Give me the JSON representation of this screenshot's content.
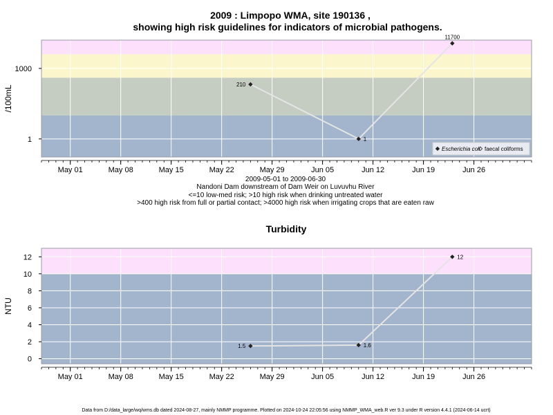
{
  "colors": {
    "pink": "#fce0fc",
    "yellow": "#fbf6cc",
    "sage": "#c5cdc2",
    "blue": "#a3b4cd",
    "grid": "#ffffff",
    "line": "#e4e4e4",
    "point": "#222222",
    "frame": "#9a9aa8"
  },
  "chart_data": [
    {
      "type": "line",
      "title_line1": "2009 : Limpopo WMA, site 190136 ,",
      "title_line2": "showing high risk guidelines for indicators of microbial pathogens.",
      "ylabel": "/100mL",
      "yscale": "log",
      "ylim": [
        0.17,
        16000
      ],
      "yticks": [
        1,
        1000
      ],
      "ytick_labels": [
        "1",
        "1000"
      ],
      "xlim": [
        "2009-04-27",
        "2009-07-04"
      ],
      "xticks": [
        "2009-05-01",
        "2009-05-08",
        "2009-05-15",
        "2009-05-22",
        "2009-05-29",
        "2009-06-05",
        "2009-06-12",
        "2009-06-19",
        "2009-06-26"
      ],
      "xtick_labels": [
        "May 01",
        "May 08",
        "May 15",
        "May 22",
        "May 29",
        "Jun 05",
        "Jun 12",
        "Jun 19",
        "Jun 26"
      ],
      "bands": [
        {
          "from": 4000,
          "to": 16000,
          "color": "pink"
        },
        {
          "from": 400,
          "to": 4000,
          "color": "yellow"
        },
        {
          "from": 10,
          "to": 400,
          "color": "sage"
        },
        {
          "from": 0.17,
          "to": 10,
          "color": "blue"
        }
      ],
      "series": [
        {
          "name": "Escherichia coli",
          "x": [
            "2009-05-26",
            "2009-06-10",
            "2009-06-23"
          ],
          "y": [
            210,
            1,
            11700
          ],
          "labels": [
            "210",
            "1",
            "11700"
          ],
          "label_pos": [
            "left",
            "right",
            "top"
          ]
        }
      ],
      "legend": {
        "position": "bottom-right",
        "entries": [
          {
            "label": "Escherichia coli",
            "marker": "filled-diamond",
            "italic": true
          },
          {
            "label": "faecal coliforms",
            "marker": "open-diamond",
            "italic": false
          }
        ]
      },
      "caption": [
        "2009-05-01 to 2009-06-30",
        "Nandoni Dam downstream of Dam Weir on Luvuvhu River",
        "<=10 low-med risk; >10 high risk when drinking untreated water",
        ">400 high risk from full or partial contact; >4000 high risk when irrigating crops that are eaten raw"
      ]
    },
    {
      "type": "line",
      "title": "Turbidity",
      "ylabel": "NTU",
      "yscale": "linear",
      "ylim": [
        -0.6,
        13.0
      ],
      "yticks": [
        0,
        2,
        4,
        6,
        8,
        10,
        12
      ],
      "ytick_labels": [
        "0",
        "2",
        "4",
        "6",
        "8",
        "10",
        "12"
      ],
      "xlim": [
        "2009-04-27",
        "2009-07-04"
      ],
      "xticks": [
        "2009-05-01",
        "2009-05-08",
        "2009-05-15",
        "2009-05-22",
        "2009-05-29",
        "2009-06-05",
        "2009-06-12",
        "2009-06-19",
        "2009-06-26"
      ],
      "xtick_labels": [
        "May 01",
        "May 08",
        "May 15",
        "May 22",
        "May 29",
        "Jun 05",
        "Jun 12",
        "Jun 19",
        "Jun 26"
      ],
      "bands": [
        {
          "from": 10,
          "to": 13.0,
          "color": "pink"
        },
        {
          "from": -0.6,
          "to": 10,
          "color": "blue"
        }
      ],
      "series": [
        {
          "x": [
            "2009-05-26",
            "2009-06-10",
            "2009-06-23"
          ],
          "y": [
            1.5,
            1.6,
            12
          ],
          "labels": [
            "1.5",
            "1.6",
            "12"
          ],
          "label_pos": [
            "left",
            "right",
            "right"
          ]
        }
      ]
    }
  ],
  "footer": "Data from D:/data_large/wq/wms.db dated 2024-08-27, mainly NMMP programme. Plotted on 2024-10-24 22:05:56 using NMMP_WMA_web.R ver 9.3 under R version 4.4.1 (2024-06-14 ucrt)"
}
